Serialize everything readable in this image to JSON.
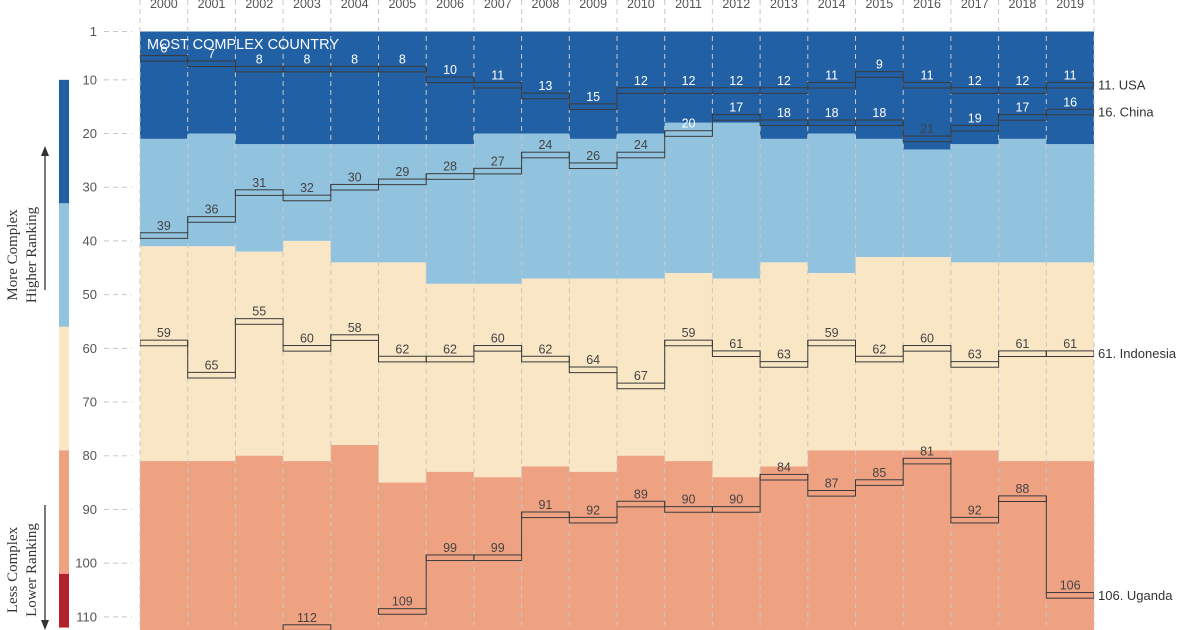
{
  "chart_data": {
    "type": "line",
    "banner": "MOST COMPLEX COUNTRY",
    "side_labels": {
      "top": [
        "More Complex",
        "Higher Ranking"
      ],
      "bottom": [
        "Less Complex",
        "Lower Ranking"
      ]
    },
    "years": [
      "2000",
      "2001",
      "2002",
      "2003",
      "2004",
      "2005",
      "2006",
      "2007",
      "2008",
      "2009",
      "2010",
      "2011",
      "2012",
      "2013",
      "2014",
      "2015",
      "2016",
      "2017",
      "2018",
      "2019"
    ],
    "y_ticks": [
      1,
      10,
      20,
      30,
      40,
      50,
      60,
      70,
      80,
      90,
      100,
      110
    ],
    "ylim": [
      1,
      112
    ],
    "y_reversed": true,
    "band_colors": {
      "dark_blue": "#2160a4",
      "light_blue": "#91c3df",
      "cream": "#f8e6c5",
      "salmon": "#efa282",
      "red": "#b4222e"
    },
    "band_boundaries": {
      "blue_to_lightblue": [
        21,
        20,
        22,
        22,
        22,
        22,
        22,
        20,
        20,
        21,
        20,
        18,
        18,
        21,
        20,
        21,
        23,
        22,
        21,
        22
      ],
      "lightblue_to_cream": [
        41,
        41,
        42,
        40,
        44,
        44,
        48,
        48,
        47,
        47,
        47,
        46,
        47,
        44,
        46,
        43,
        43,
        44,
        44,
        44
      ],
      "cream_to_salmon": [
        81,
        81,
        80,
        81,
        78,
        85,
        83,
        84,
        82,
        83,
        80,
        81,
        84,
        82,
        79,
        79,
        79,
        79,
        81,
        81
      ]
    },
    "color_legend_breaks": [
      {
        "from": 10,
        "to": 33,
        "color": "#2160a4"
      },
      {
        "from": 33,
        "to": 56,
        "color": "#91c3df"
      },
      {
        "from": 56,
        "to": 79,
        "color": "#f8e6c5"
      },
      {
        "from": 79,
        "to": 102,
        "color": "#efa282"
      },
      {
        "from": 102,
        "to": 112,
        "color": "#b4222e"
      }
    ],
    "series": [
      {
        "name": "11. USA",
        "label_color": "#ffffff",
        "values": [
          6,
          7,
          8,
          8,
          8,
          8,
          10,
          11,
          13,
          15,
          12,
          12,
          12,
          12,
          11,
          9,
          11,
          12,
          12,
          11
        ]
      },
      {
        "name": "16. China",
        "label_color": "#ffffff",
        "values": [
          39,
          36,
          31,
          32,
          30,
          29,
          28,
          27,
          24,
          26,
          24,
          20,
          17,
          18,
          18,
          18,
          21,
          19,
          17,
          16
        ],
        "label_colors_by_index": {
          "0": "#444444",
          "1": "#444444",
          "2": "#444444",
          "3": "#444444",
          "4": "#444444",
          "5": "#444444",
          "6": "#444444",
          "7": "#444444",
          "8": "#444444",
          "9": "#444444",
          "10": "#444444",
          "11": "#ffffff",
          "16": "#444444"
        }
      },
      {
        "name": "61. Indonesia",
        "label_color": "#444444",
        "values": [
          59,
          65,
          55,
          60,
          58,
          62,
          62,
          60,
          62,
          64,
          67,
          59,
          61,
          63,
          59,
          62,
          60,
          63,
          61,
          61
        ]
      },
      {
        "name": "106. Uganda",
        "label_color": "#444444",
        "values": [
          null,
          null,
          null,
          112,
          null,
          109,
          99,
          99,
          91,
          92,
          89,
          90,
          90,
          84,
          87,
          85,
          81,
          92,
          88,
          106
        ]
      }
    ]
  }
}
